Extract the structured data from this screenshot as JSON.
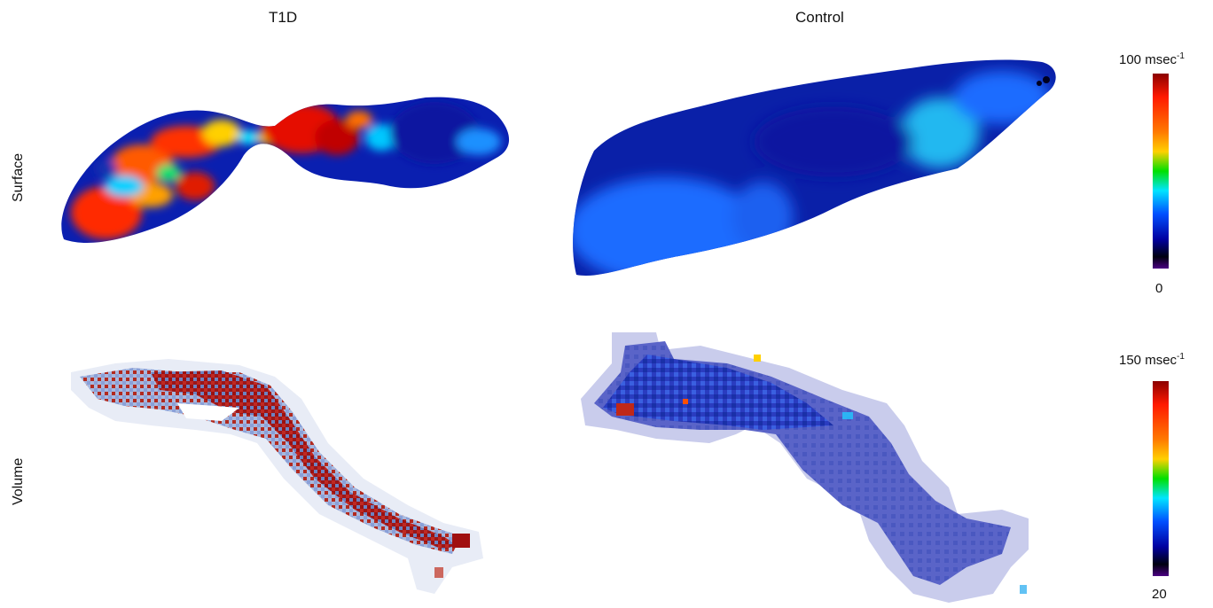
{
  "columns": {
    "left": "T1D",
    "right": "Control"
  },
  "rows": {
    "top": "Surface",
    "bottom": "Volume"
  },
  "colorbars": {
    "surface": {
      "max_value": "100",
      "unit": "msec",
      "exponent": "-1",
      "min_value": "0"
    },
    "volume": {
      "max_value": "150",
      "unit": "msec",
      "exponent": "-1",
      "min_value": "20"
    }
  },
  "colormap": [
    "#8b0000",
    "#ff2a00",
    "#ffa500",
    "#ffff00",
    "#00e000",
    "#00e5ff",
    "#0040ff",
    "#0000b0",
    "#000020",
    "#4b0082"
  ]
}
